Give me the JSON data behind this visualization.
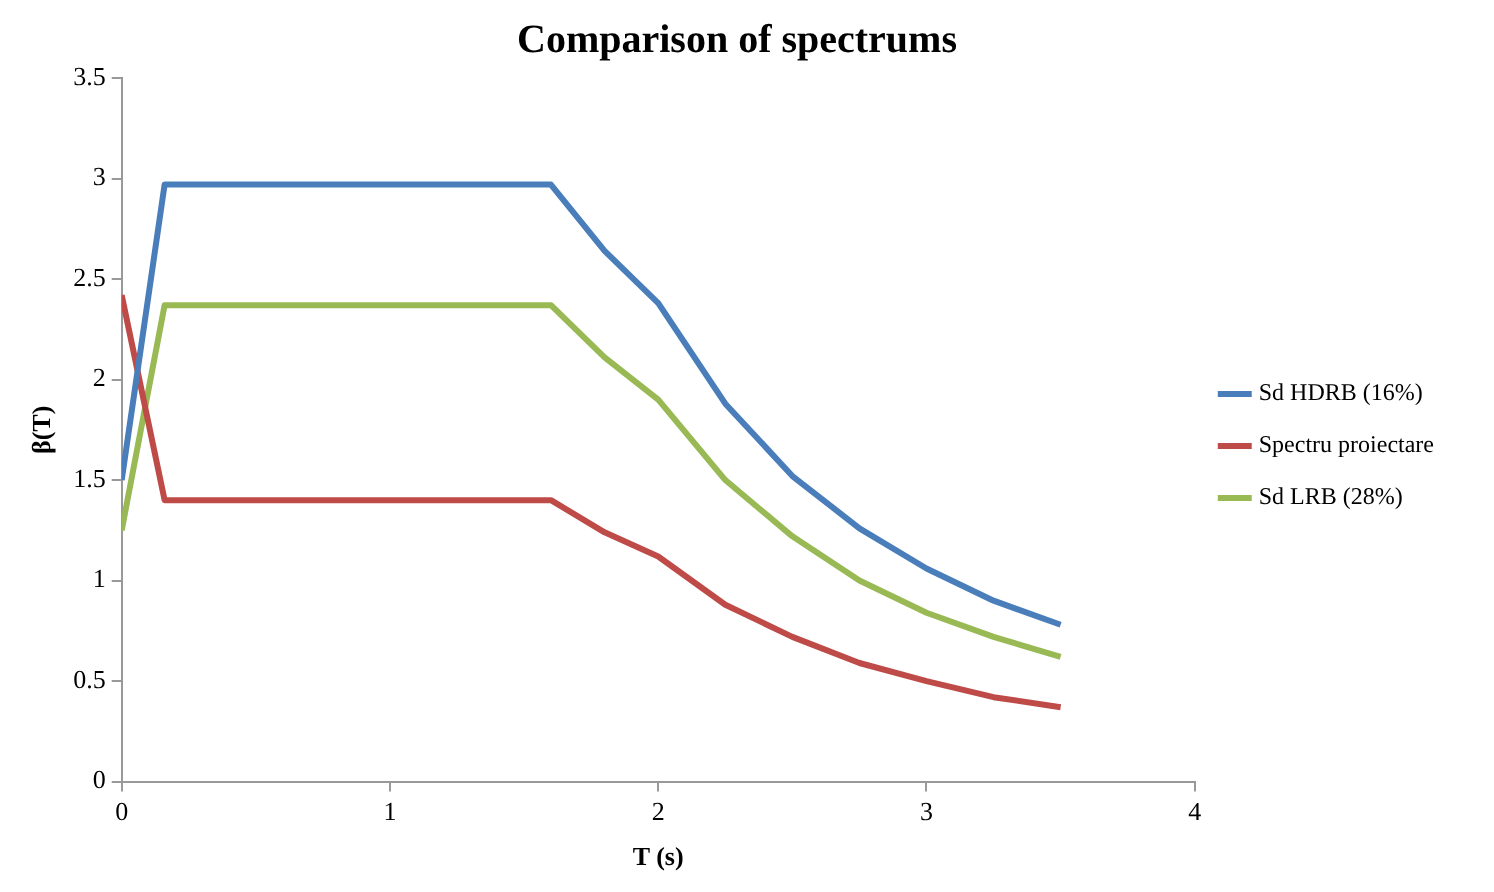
{
  "chart_data": {
    "type": "line",
    "title": "Comparison of spectrums",
    "xlabel": "T (s)",
    "ylabel": "β(T)",
    "x": [
      0,
      0.16,
      1.6,
      1.8,
      2.0,
      2.25,
      2.5,
      2.75,
      3.0,
      3.25,
      3.5
    ],
    "series": [
      {
        "name": "Sd HDRB (16%)",
        "color": "#4a7ebb",
        "values": [
          1.5,
          2.97,
          2.97,
          2.64,
          2.38,
          1.88,
          1.52,
          1.26,
          1.06,
          0.9,
          0.78
        ]
      },
      {
        "name": "Spectru proiectare",
        "color": "#be4b48",
        "values": [
          2.42,
          1.4,
          1.4,
          1.24,
          1.12,
          0.88,
          0.72,
          0.59,
          0.5,
          0.42,
          0.37
        ]
      },
      {
        "name": "Sd LRB (28%)",
        "color": "#98b954",
        "values": [
          1.25,
          2.37,
          2.37,
          2.11,
          1.9,
          1.5,
          1.22,
          1.0,
          0.84,
          0.72,
          0.62
        ]
      }
    ],
    "xlim": [
      0,
      4
    ],
    "xticks": [
      0,
      1,
      2,
      3,
      4
    ],
    "ylim": [
      0,
      3.5
    ],
    "yticks": [
      0,
      0.5,
      1,
      1.5,
      2,
      2.5,
      3,
      3.5
    ],
    "grid": false,
    "legend": "right",
    "marker": "none",
    "line_style": "solid"
  }
}
